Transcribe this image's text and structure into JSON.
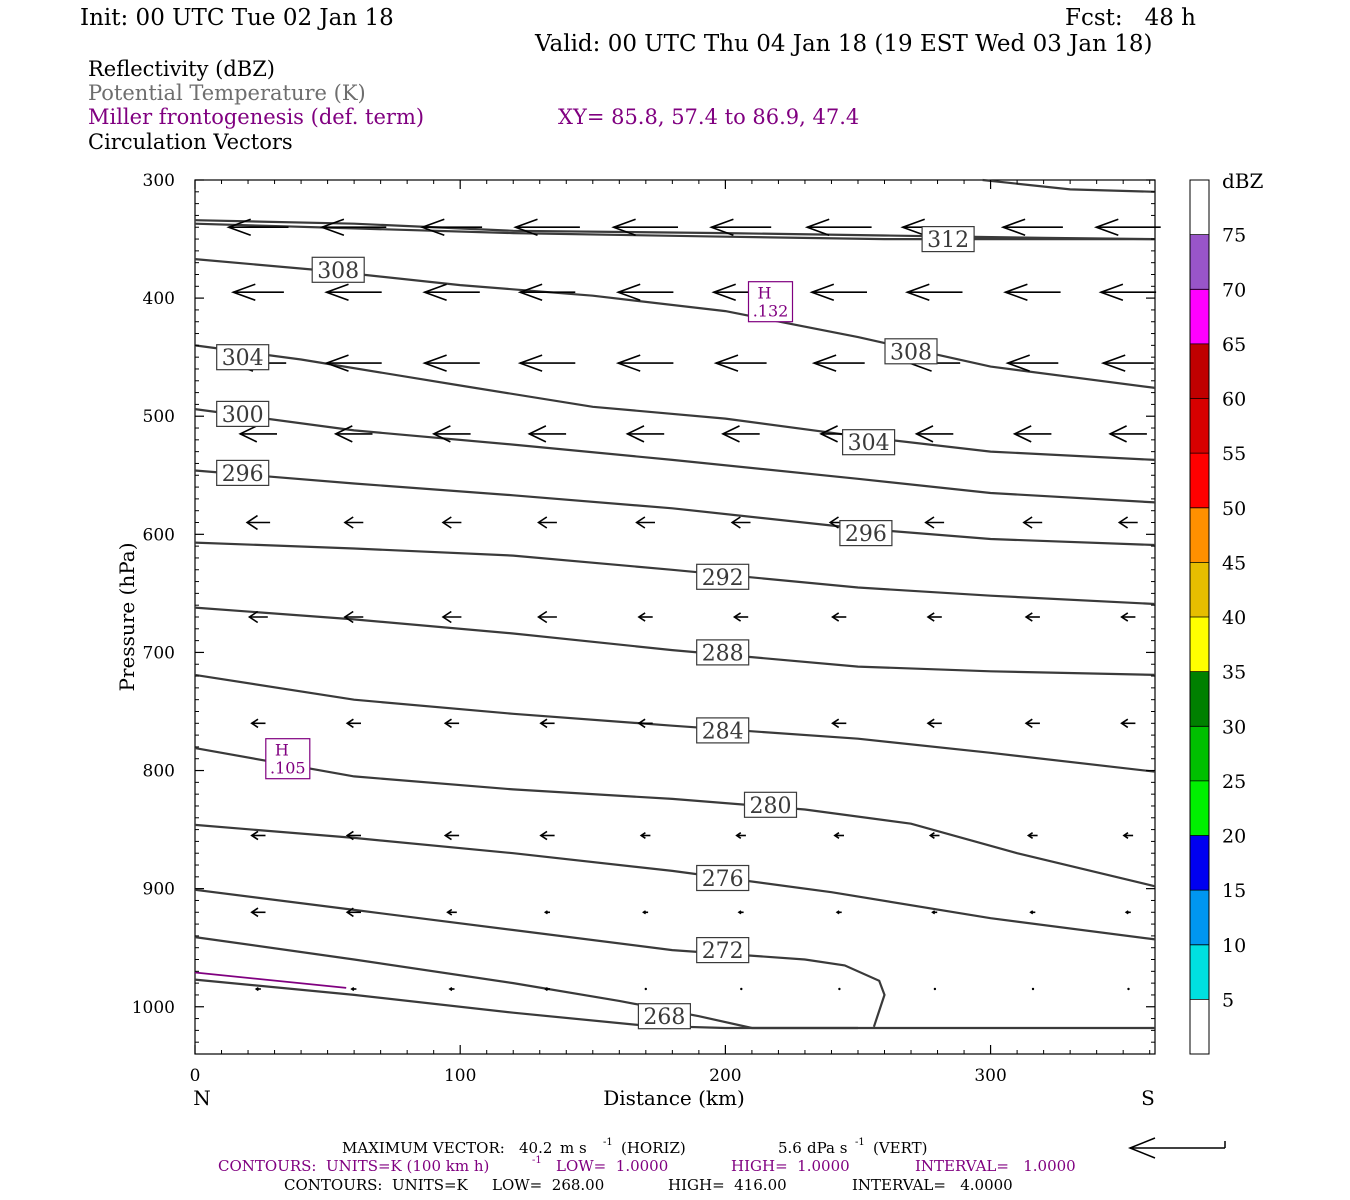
{
  "header": {
    "init": "Init: 00 UTC Tue 02 Jan 18",
    "fcst": "Fcst:   48 h",
    "valid": "Valid: 00 UTC Thu 04 Jan 18 (19 EST Wed 03 Jan 18)"
  },
  "legend": {
    "reflectivity": "Reflectivity (dBZ)",
    "theta": "Potential Temperature (K)",
    "miller": "Miller frontogenesis (def. term)",
    "xy": "XY=  85.8, 57.4 to  86.9, 47.4",
    "vectors": "Circulation Vectors"
  },
  "colors": {
    "theta_line": "#3a3a3a",
    "theta_legend": "#6e6e6e",
    "miller": "#800080",
    "axis": "#000000"
  },
  "chart_data": {
    "type": "cross-section",
    "xlabel": "Distance (km)",
    "ylabel": "Pressure (hPa)",
    "xlim": [
      0,
      362
    ],
    "ylim": [
      1040,
      300
    ],
    "x_ticks": [
      0,
      100,
      200,
      300
    ],
    "y_ticks": [
      300,
      400,
      500,
      600,
      700,
      800,
      900,
      1000
    ],
    "x_end_labels": {
      "left": "N",
      "right": "S"
    },
    "grid": false,
    "theta_contours": [
      {
        "label": "312",
        "label_at": [
          284,
          350
        ],
        "points": [
          [
            0,
            334
          ],
          [
            60,
            337
          ],
          [
            120,
            343
          ],
          [
            200,
            345
          ],
          [
            260,
            347
          ],
          [
            320,
            349
          ],
          [
            362,
            350
          ]
        ]
      },
      {
        "label": "",
        "label_at": null,
        "points": [
          [
            0,
            337
          ],
          [
            60,
            341
          ],
          [
            120,
            345
          ],
          [
            200,
            348
          ],
          [
            260,
            350
          ],
          [
            320,
            350
          ],
          [
            362,
            350
          ]
        ]
      },
      {
        "label": "",
        "label_at": null,
        "points": [
          [
            297,
            300
          ],
          [
            330,
            308
          ],
          [
            362,
            310
          ]
        ]
      },
      {
        "label": "308",
        "label_at": [
          54,
          376
        ],
        "points": [
          [
            0,
            367
          ],
          [
            50,
            377
          ],
          [
            100,
            389
          ],
          [
            150,
            398
          ],
          [
            200,
            411
          ],
          [
            250,
            433
          ],
          [
            300,
            458
          ],
          [
            362,
            476
          ]
        ]
      },
      {
        "label": "308",
        "label_at": [
          270,
          445
        ],
        "points": null
      },
      {
        "label": "304",
        "label_at": [
          18,
          450
        ],
        "points": [
          [
            0,
            440
          ],
          [
            40,
            452
          ],
          [
            100,
            474
          ],
          [
            150,
            492
          ],
          [
            200,
            502
          ],
          [
            250,
            517
          ],
          [
            300,
            530
          ],
          [
            362,
            537
          ]
        ]
      },
      {
        "label": "304",
        "label_at": [
          254,
          522
        ],
        "points": null
      },
      {
        "label": "300",
        "label_at": [
          18,
          498
        ],
        "points": [
          [
            0,
            494
          ],
          [
            60,
            512
          ],
          [
            120,
            524
          ],
          [
            180,
            537
          ],
          [
            250,
            553
          ],
          [
            300,
            565
          ],
          [
            362,
            573
          ]
        ]
      },
      {
        "label": "296",
        "label_at": [
          18,
          548
        ],
        "points": [
          [
            0,
            546
          ],
          [
            60,
            557
          ],
          [
            120,
            567
          ],
          [
            180,
            578
          ],
          [
            250,
            595
          ],
          [
            300,
            604
          ],
          [
            362,
            609
          ]
        ]
      },
      {
        "label": "296",
        "label_at": [
          253,
          599
        ],
        "points": null
      },
      {
        "label": "292",
        "label_at": [
          199,
          636
        ],
        "points": [
          [
            0,
            607
          ],
          [
            60,
            612
          ],
          [
            120,
            618
          ],
          [
            180,
            630
          ],
          [
            250,
            645
          ],
          [
            300,
            652
          ],
          [
            362,
            659
          ]
        ]
      },
      {
        "label": "288",
        "label_at": [
          199,
          700
        ],
        "points": [
          [
            0,
            662
          ],
          [
            60,
            672
          ],
          [
            120,
            684
          ],
          [
            180,
            698
          ],
          [
            250,
            712
          ],
          [
            300,
            716
          ],
          [
            362,
            719
          ]
        ]
      },
      {
        "label": "284",
        "label_at": [
          199,
          766
        ],
        "points": [
          [
            0,
            719
          ],
          [
            60,
            740
          ],
          [
            120,
            752
          ],
          [
            180,
            762
          ],
          [
            250,
            773
          ],
          [
            300,
            785
          ],
          [
            362,
            801
          ]
        ]
      },
      {
        "label": "280",
        "label_at": [
          217,
          829
        ],
        "points": [
          [
            0,
            781
          ],
          [
            60,
            805
          ],
          [
            120,
            816
          ],
          [
            180,
            824
          ],
          [
            230,
            833
          ],
          [
            270,
            845
          ],
          [
            310,
            870
          ],
          [
            362,
            898
          ]
        ]
      },
      {
        "label": "276",
        "label_at": [
          199,
          891
        ],
        "points": [
          [
            0,
            846
          ],
          [
            60,
            857
          ],
          [
            120,
            870
          ],
          [
            180,
            885
          ],
          [
            240,
            903
          ],
          [
            300,
            925
          ],
          [
            362,
            943
          ]
        ]
      },
      {
        "label": "272",
        "label_at": [
          199,
          952
        ],
        "points": [
          [
            0,
            901
          ],
          [
            60,
            918
          ],
          [
            120,
            935
          ],
          [
            180,
            952
          ],
          [
            230,
            960
          ],
          [
            245,
            965
          ],
          [
            258,
            978
          ],
          [
            260,
            990
          ],
          [
            256,
            1017
          ]
        ]
      },
      {
        "label": "",
        "label_at": null,
        "points": [
          [
            0,
            941
          ],
          [
            60,
            960
          ],
          [
            120,
            980
          ],
          [
            160,
            995
          ],
          [
            190,
            1008
          ],
          [
            210,
            1018
          ],
          [
            250,
            1018
          ]
        ]
      },
      {
        "label": "268",
        "label_at": [
          177,
          1008
        ],
        "points": [
          [
            0,
            977
          ],
          [
            60,
            990
          ],
          [
            120,
            1005
          ],
          [
            170,
            1016
          ],
          [
            200,
            1018
          ],
          [
            260,
            1018
          ],
          [
            362,
            1018
          ]
        ]
      }
    ],
    "miller_maxima": [
      {
        "label": "H",
        "value": ".132",
        "x": 217,
        "p": 403
      },
      {
        "label": "H",
        "value": ".105",
        "x": 35,
        "p": 790
      }
    ],
    "miller_contour": [
      [
        0,
        971
      ],
      [
        57,
        984
      ]
    ],
    "wind_levels": [
      {
        "p": 340,
        "u": [
          -13,
          -14,
          -13,
          -14,
          -14,
          -13,
          -14,
          -14,
          -13,
          -14
        ],
        "w": [
          0,
          0,
          0,
          0,
          0,
          0,
          0,
          0,
          0,
          0
        ]
      },
      {
        "p": 395,
        "u": [
          -11,
          -12,
          -12,
          -12,
          -12,
          -12,
          -12,
          -12,
          -12,
          -12
        ],
        "w": [
          0,
          0,
          0,
          0,
          0,
          0,
          0,
          0,
          0,
          0
        ]
      },
      {
        "p": 455,
        "u": [
          -12,
          -12,
          -12,
          -12,
          -12,
          -11,
          -11,
          -11,
          -11,
          -11
        ],
        "w": [
          0,
          0,
          0,
          0,
          0,
          0,
          0,
          0,
          0,
          0
        ]
      },
      {
        "p": 515,
        "u": [
          -8,
          -8,
          -8,
          -8,
          -8,
          -8,
          -8,
          -8,
          -8,
          -8
        ],
        "w": [
          0,
          0,
          0,
          0,
          0,
          0,
          0,
          0,
          0,
          0
        ]
      },
      {
        "p": 590,
        "u": [
          -5,
          -4,
          -4,
          -4,
          -4,
          -4,
          -4,
          -4,
          -4,
          -4
        ],
        "w": [
          0,
          0,
          0,
          0,
          0,
          0,
          0,
          0,
          0,
          0
        ]
      },
      {
        "p": 670,
        "u": [
          -4,
          -4,
          -4,
          -4,
          -3,
          -3,
          -3,
          -3,
          -3,
          -3
        ],
        "w": [
          0,
          0,
          0,
          0,
          0,
          0,
          0,
          0,
          0,
          0
        ]
      },
      {
        "p": 760,
        "u": [
          -3,
          -3,
          -3,
          -3,
          -3,
          -3,
          -3,
          -3,
          -3,
          -3
        ],
        "w": [
          0,
          0,
          0,
          0,
          0,
          0,
          0,
          0,
          0,
          0
        ]
      },
      {
        "p": 855,
        "u": [
          -3,
          -3,
          -3,
          -3,
          -2,
          -2,
          -2,
          -2,
          -2,
          -2
        ],
        "w": [
          0,
          0,
          0,
          0,
          0,
          0,
          0,
          0,
          0,
          0
        ]
      },
      {
        "p": 920,
        "u": [
          -3,
          -3,
          -2,
          -1,
          -1,
          -1,
          -1,
          -1,
          -1,
          -1
        ],
        "w": [
          0,
          0,
          0,
          0,
          0,
          0,
          0,
          0,
          0,
          0
        ]
      },
      {
        "p": 985,
        "u": [
          -1,
          -1,
          -1,
          -1,
          0,
          0,
          0,
          0,
          0,
          0
        ],
        "w": [
          0,
          0,
          0,
          0,
          0,
          0,
          0,
          0,
          0,
          0
        ]
      }
    ],
    "wind_x": [
      24,
      60,
      97,
      133,
      170,
      206,
      243,
      279,
      316,
      352
    ],
    "colorbar": {
      "unit": "dBZ",
      "levels": [
        "5",
        "10",
        "15",
        "20",
        "25",
        "30",
        "35",
        "40",
        "45",
        "50",
        "55",
        "60",
        "65",
        "70",
        "75"
      ],
      "colors": [
        "#ffffff",
        "#00e0e0",
        "#0096f0",
        "#0000f0",
        "#00f000",
        "#00c000",
        "#008000",
        "#ffff00",
        "#e6be00",
        "#ff9000",
        "#ff0000",
        "#d70000",
        "#c00000",
        "#ff00ff",
        "#9955c9",
        "#ffffff"
      ]
    }
  },
  "footer": {
    "max_vector_label": "MAXIMUM VECTOR:",
    "max_vector_horiz_value": "40.2",
    "max_vector_horiz_unit": "m s",
    "max_vector_horiz_exp": "-1",
    "max_vector_horiz_tag": "(HORIZ)",
    "max_vector_vert_value": "5.6",
    "max_vector_vert_unit": "dPa s",
    "max_vector_vert_exp": "-1",
    "max_vector_vert_tag": "(VERT)",
    "contours_miller": {
      "prefix": "CONTOURS:  UNITS=K (100 km h)",
      "exp": "-1",
      "low": "LOW=  1.0000",
      "high": "HIGH=  1.0000",
      "interval": "INTERVAL=   1.0000"
    },
    "contours_theta": {
      "prefix": "CONTOURS:  UNITS=K",
      "low": "LOW=  268.00",
      "high": "HIGH=  416.00",
      "interval": "INTERVAL=   4.0000"
    }
  }
}
